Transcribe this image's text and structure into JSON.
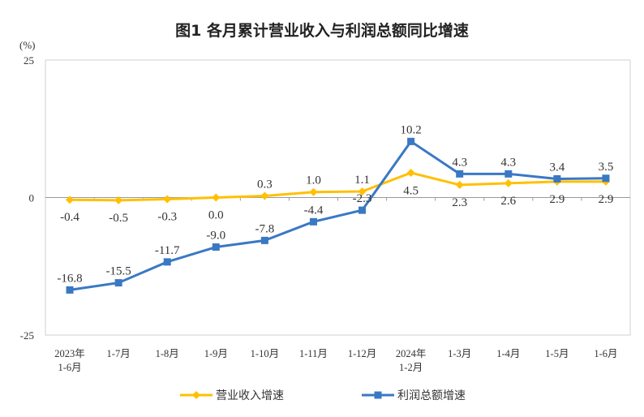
{
  "chart_data": {
    "type": "line",
    "title": "图1  各月累计营业收入与利润总额同比增速",
    "ylabel": "(%)",
    "ylim": [
      -25,
      25
    ],
    "yticks": [
      "25",
      "0",
      "-25"
    ],
    "grid": false,
    "legend_position": "bottom",
    "categories": [
      [
        "2023年",
        "1-6月"
      ],
      [
        "1-7月"
      ],
      [
        "1-8月"
      ],
      [
        "1-9月"
      ],
      [
        "1-10月"
      ],
      [
        "1-11月"
      ],
      [
        "1-12月"
      ],
      [
        "2024年",
        "1-2月"
      ],
      [
        "1-3月"
      ],
      [
        "1-4月"
      ],
      [
        "1-5月"
      ],
      [
        "1-6月"
      ]
    ],
    "series": [
      {
        "name": "营业收入增速",
        "color": "#FFC000",
        "marker": "diamond",
        "values": [
          -0.4,
          -0.5,
          -0.3,
          0.0,
          0.3,
          1.0,
          1.1,
          4.5,
          2.3,
          2.6,
          2.9,
          2.9
        ],
        "labels": [
          "-0.4",
          "-0.5",
          "-0.3",
          "0.0",
          "0.3",
          "1.0",
          "1.1",
          "4.5",
          "2.3",
          "2.6",
          "2.9",
          "2.9"
        ]
      },
      {
        "name": "利润总额增速",
        "color": "#3A78C4",
        "marker": "square",
        "values": [
          -16.8,
          -15.5,
          -11.7,
          -9.0,
          -7.8,
          -4.4,
          -2.3,
          10.2,
          4.3,
          4.3,
          3.4,
          3.5
        ],
        "labels": [
          "-16.8",
          "-15.5",
          "-11.7",
          "-9.0",
          "-7.8",
          "-4.4",
          "-2.3",
          "10.2",
          "4.3",
          "4.3",
          "3.4",
          "3.5"
        ]
      }
    ]
  }
}
